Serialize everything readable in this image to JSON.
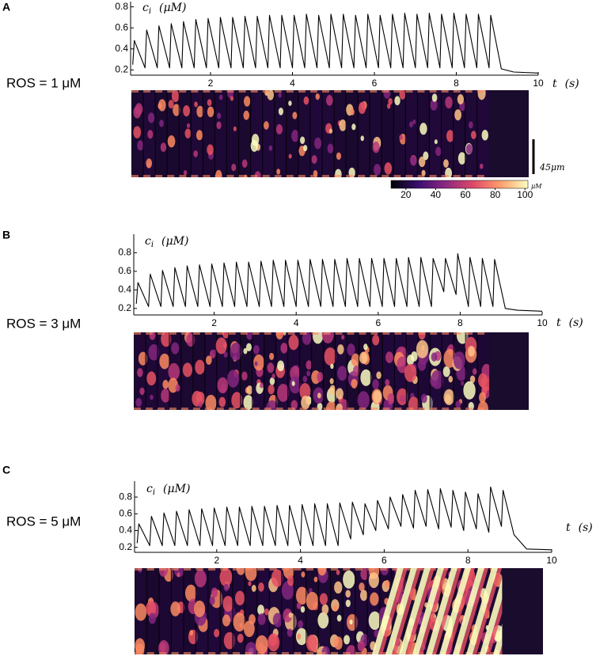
{
  "chart_data": [
    {
      "type": "line",
      "panel": "A",
      "condition": "ROS = 1 μM",
      "y_label": {
        "symbol": "c",
        "subscript": "i",
        "unit": "(μM)"
      },
      "x_label": {
        "symbol": "t",
        "unit": "(s)"
      },
      "x": [
        0.1,
        0.14,
        0.4,
        0.44,
        0.7,
        0.74,
        1.0,
        1.04,
        1.3,
        1.34,
        1.6,
        1.64,
        1.9,
        1.94,
        2.2,
        2.24,
        2.5,
        2.54,
        2.8,
        2.84,
        3.1,
        3.14,
        3.4,
        3.44,
        3.7,
        3.74,
        4.0,
        4.04,
        4.3,
        4.34,
        4.6,
        4.64,
        4.9,
        4.94,
        5.2,
        5.24,
        5.5,
        5.54,
        5.8,
        5.84,
        6.1,
        6.14,
        6.4,
        6.44,
        6.7,
        6.74,
        7.0,
        7.04,
        7.3,
        7.34,
        7.6,
        7.64,
        7.9,
        7.94,
        8.2,
        8.24,
        8.5,
        8.54,
        8.8,
        8.84,
        9.1,
        9.4,
        10.0
      ],
      "series": [
        {
          "color": "#000000",
          "values": [
            0.25,
            0.48,
            0.22,
            0.58,
            0.22,
            0.62,
            0.22,
            0.64,
            0.22,
            0.66,
            0.22,
            0.68,
            0.22,
            0.69,
            0.22,
            0.7,
            0.22,
            0.7,
            0.22,
            0.71,
            0.22,
            0.71,
            0.22,
            0.72,
            0.22,
            0.72,
            0.22,
            0.72,
            0.22,
            0.73,
            0.22,
            0.72,
            0.22,
            0.73,
            0.22,
            0.73,
            0.22,
            0.72,
            0.22,
            0.73,
            0.22,
            0.72,
            0.22,
            0.73,
            0.22,
            0.74,
            0.22,
            0.73,
            0.22,
            0.74,
            0.22,
            0.73,
            0.22,
            0.74,
            0.22,
            0.73,
            0.22,
            0.73,
            0.22,
            0.72,
            0.21,
            0.18,
            0.17
          ]
        }
      ],
      "xlim": [
        0,
        10
      ],
      "xticks": [
        2,
        4,
        6,
        8,
        10
      ],
      "ylim": [
        0.15,
        0.85
      ],
      "yticks": [
        0.2,
        0.4,
        0.6,
        0.8
      ],
      "colorbar": {
        "lim": [
          10,
          102
        ],
        "ticks": [
          20,
          40,
          60,
          80,
          100
        ],
        "label": "μM",
        "colors": [
          "#000004",
          "#3b0f70",
          "#8c2981",
          "#de4968",
          "#fe9f6d",
          "#fcfdbf"
        ]
      },
      "scale_bar": "45μm"
    },
    {
      "type": "line",
      "panel": "B",
      "condition": "ROS = 3 μM",
      "y_label": {
        "symbol": "c",
        "subscript": "i",
        "unit": "(μM)"
      },
      "x_label": {
        "symbol": "t",
        "unit": "(s)"
      },
      "x": [
        0.1,
        0.14,
        0.4,
        0.44,
        0.7,
        0.74,
        1.0,
        1.04,
        1.3,
        1.34,
        1.6,
        1.64,
        1.9,
        1.94,
        2.2,
        2.24,
        2.5,
        2.54,
        2.8,
        2.84,
        3.1,
        3.14,
        3.4,
        3.44,
        3.7,
        3.74,
        4.0,
        4.04,
        4.3,
        4.34,
        4.6,
        4.64,
        4.9,
        4.94,
        5.2,
        5.24,
        5.5,
        5.54,
        5.8,
        5.84,
        6.1,
        6.14,
        6.4,
        6.44,
        6.7,
        6.74,
        7.0,
        7.04,
        7.3,
        7.34,
        7.6,
        7.64,
        7.9,
        7.94,
        8.2,
        8.24,
        8.5,
        8.54,
        8.8,
        8.84,
        9.1,
        9.4,
        10.0
      ],
      "series": [
        {
          "color": "#000000",
          "values": [
            0.25,
            0.48,
            0.22,
            0.57,
            0.22,
            0.61,
            0.22,
            0.64,
            0.22,
            0.66,
            0.22,
            0.67,
            0.22,
            0.68,
            0.22,
            0.69,
            0.22,
            0.7,
            0.22,
            0.7,
            0.22,
            0.71,
            0.22,
            0.72,
            0.22,
            0.72,
            0.22,
            0.72,
            0.22,
            0.73,
            0.22,
            0.73,
            0.22,
            0.73,
            0.22,
            0.74,
            0.22,
            0.74,
            0.22,
            0.74,
            0.22,
            0.74,
            0.22,
            0.74,
            0.22,
            0.75,
            0.22,
            0.75,
            0.22,
            0.74,
            0.38,
            0.74,
            0.35,
            0.79,
            0.22,
            0.75,
            0.22,
            0.74,
            0.22,
            0.73,
            0.2,
            0.18,
            0.17
          ]
        }
      ],
      "xlim": [
        0,
        10
      ],
      "xticks": [
        2,
        4,
        6,
        8,
        10
      ],
      "ylim": [
        0.13,
        1.0
      ],
      "yticks": [
        0.2,
        0.4,
        0.6,
        0.8
      ]
    },
    {
      "type": "line",
      "panel": "C",
      "condition": "ROS = 5 μM",
      "y_label": {
        "symbol": "c",
        "subscript": "i",
        "unit": "(μM)"
      },
      "x_label": {
        "symbol": "t",
        "unit": "(s)"
      },
      "x": [
        0.1,
        0.14,
        0.4,
        0.44,
        0.7,
        0.74,
        1.0,
        1.04,
        1.3,
        1.34,
        1.6,
        1.64,
        1.9,
        1.94,
        2.2,
        2.24,
        2.5,
        2.54,
        2.8,
        2.84,
        3.1,
        3.14,
        3.4,
        3.44,
        3.7,
        3.74,
        4.0,
        4.04,
        4.3,
        4.34,
        4.6,
        4.64,
        4.9,
        4.94,
        5.2,
        5.24,
        5.5,
        5.54,
        5.8,
        5.84,
        6.1,
        6.14,
        6.4,
        6.44,
        6.7,
        6.74,
        7.0,
        7.04,
        7.3,
        7.34,
        7.6,
        7.64,
        7.9,
        7.94,
        8.2,
        8.24,
        8.5,
        8.54,
        8.8,
        8.84,
        9.1,
        9.4,
        10.0
      ],
      "series": [
        {
          "color": "#000000",
          "values": [
            0.25,
            0.48,
            0.22,
            0.57,
            0.22,
            0.61,
            0.22,
            0.63,
            0.22,
            0.65,
            0.22,
            0.66,
            0.22,
            0.67,
            0.22,
            0.68,
            0.22,
            0.68,
            0.22,
            0.69,
            0.22,
            0.69,
            0.22,
            0.7,
            0.22,
            0.7,
            0.22,
            0.71,
            0.22,
            0.72,
            0.22,
            0.72,
            0.22,
            0.73,
            0.3,
            0.74,
            0.35,
            0.72,
            0.4,
            0.76,
            0.42,
            0.8,
            0.45,
            0.83,
            0.43,
            0.88,
            0.45,
            0.89,
            0.42,
            0.9,
            0.44,
            0.88,
            0.4,
            0.86,
            0.42,
            0.84,
            0.38,
            0.92,
            0.45,
            0.88,
            0.35,
            0.18,
            0.17
          ]
        }
      ],
      "xlim": [
        0,
        10
      ],
      "xticks": [
        2,
        4,
        6,
        8,
        10
      ],
      "ylim": [
        0.14,
        0.99
      ],
      "yticks": [
        0.2,
        0.4,
        0.6,
        0.8
      ]
    }
  ]
}
